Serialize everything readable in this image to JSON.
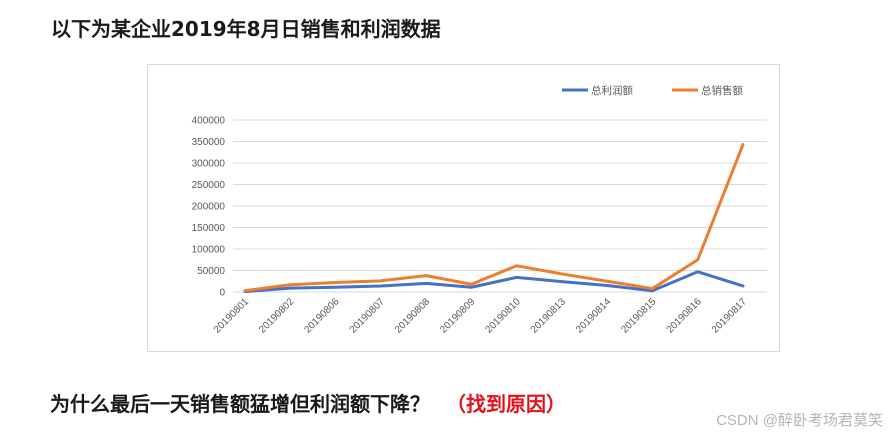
{
  "page": {
    "title": "以下为某企业2019年8月日销售和利润数据",
    "question": "为什么最后一天销售额猛增但利润额下降？",
    "question_highlight": "（找到原因）",
    "watermark": "CSDN @醉卧考场君莫笑"
  },
  "colors": {
    "profit": "#4472c4",
    "sales": "#ed7d31",
    "highlight": "#e0121b",
    "grid": "#d9d9d9"
  },
  "chart_data": {
    "type": "line",
    "title": "",
    "xlabel": "",
    "ylabel": "",
    "ylim": [
      0,
      400000
    ],
    "yticks": [
      "0",
      "50000",
      "100000",
      "150000",
      "200000",
      "250000",
      "300000",
      "350000",
      "400000"
    ],
    "grid": true,
    "legend_position": "top-right",
    "categories": [
      "20190801",
      "20190802",
      "20190806",
      "20190807",
      "20190808",
      "20190809",
      "20190810",
      "20190813",
      "20190814",
      "20190815",
      "20190816",
      "20190817"
    ],
    "series": [
      {
        "name": "总利润额",
        "color": "#4472c4",
        "values": [
          1000,
          9000,
          11000,
          14000,
          20000,
          11000,
          34000,
          24000,
          15000,
          3000,
          47000,
          14000
        ]
      },
      {
        "name": "总销售额",
        "color": "#ed7d31",
        "values": [
          3000,
          17000,
          22000,
          26000,
          38000,
          18000,
          61000,
          42000,
          25000,
          8000,
          75000,
          343000
        ]
      }
    ]
  }
}
